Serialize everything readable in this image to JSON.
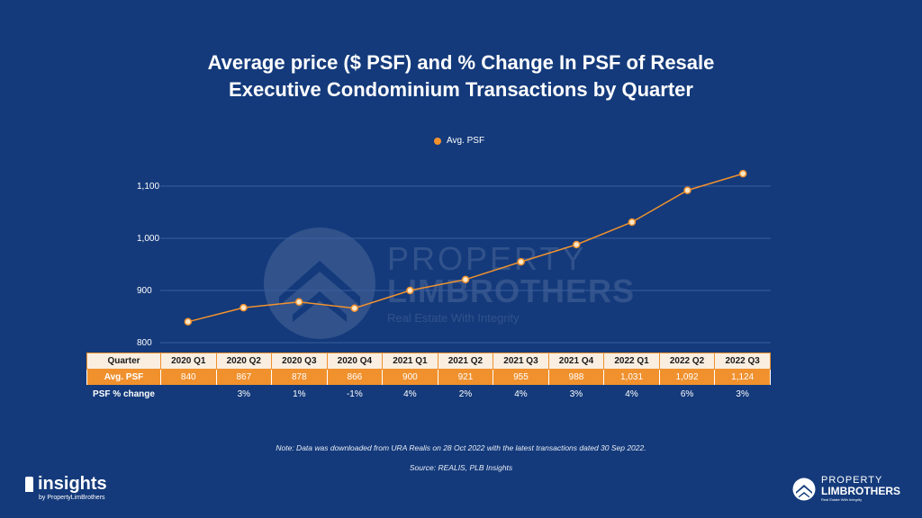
{
  "title_line1": "Average price ($ PSF) and % Change In PSF of Resale",
  "title_line2": "Executive Condominium Transactions by Quarter",
  "legend": {
    "label": "Avg. PSF"
  },
  "colors": {
    "background": "#143a7b",
    "line": "#f0912e",
    "header_row": "#faeee0"
  },
  "chart_data": {
    "type": "line",
    "categories": [
      "2020 Q1",
      "2020 Q2",
      "2020 Q3",
      "2020 Q4",
      "2021 Q1",
      "2021 Q2",
      "2021 Q3",
      "2021 Q4",
      "2022 Q1",
      "2022 Q2",
      "2022 Q3"
    ],
    "series": [
      {
        "name": "Avg. PSF",
        "values": [
          840,
          867,
          878,
          866,
          900,
          921,
          955,
          988,
          1031,
          1092,
          1124
        ]
      }
    ],
    "pct_change": [
      "",
      "3%",
      "1%",
      "-1%",
      "4%",
      "2%",
      "4%",
      "3%",
      "4%",
      "6%",
      "3%"
    ],
    "yticks": [
      "800",
      "900",
      "1,000",
      "1,100"
    ],
    "ylim": [
      800,
      1100
    ],
    "grid": true,
    "legend_position": "top-center"
  },
  "table": {
    "row_labels": {
      "quarter": "Quarter",
      "avg": "Avg. PSF",
      "change": "PSF % change"
    },
    "avg_display": [
      "840",
      "867",
      "878",
      "866",
      "900",
      "921",
      "955",
      "988",
      "1,031",
      "1,092",
      "1,124"
    ]
  },
  "watermark": {
    "line1": "PROPERTY",
    "line2": "LIMBROTHERS",
    "tagline": "Real Estate With Integrity"
  },
  "note": "Note: Data was downloaded from URA Realis on 28 Oct 2022 with the latest transactions dated 30 Sep 2022.",
  "source": "Source: REALIS, PLB Insights",
  "brand_left": {
    "name": "insights",
    "byline": "by PropertyLimBrothers"
  },
  "brand_right": {
    "line1": "PROPERTY",
    "line2": "LIMBROTHERS",
    "tagline": "Real Estate With Integrity"
  }
}
